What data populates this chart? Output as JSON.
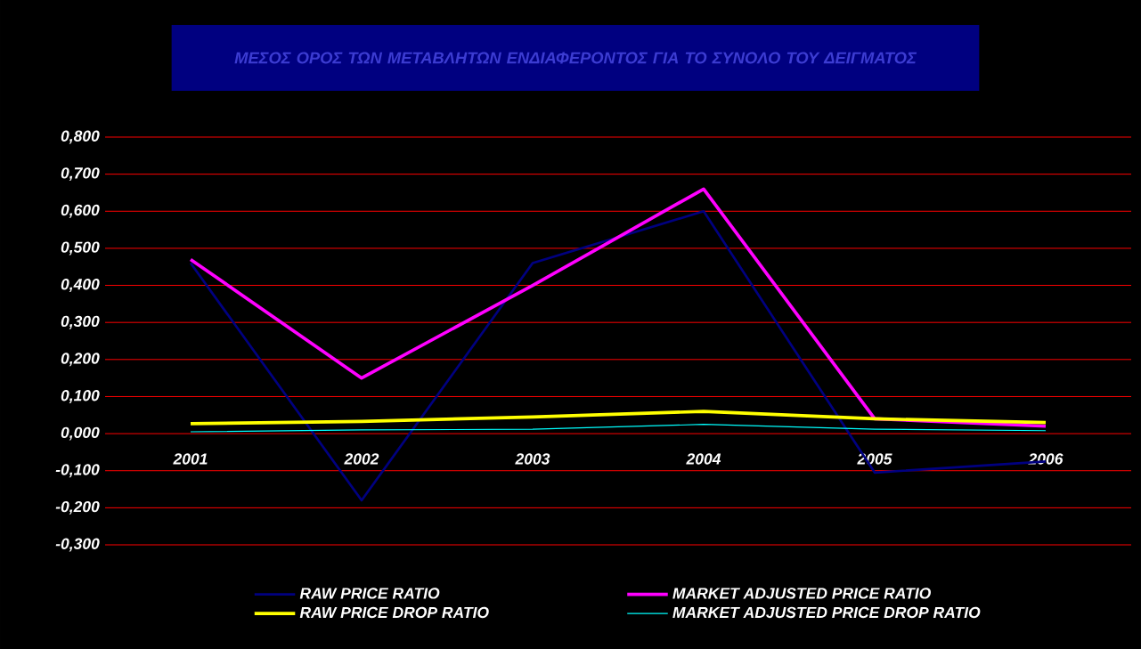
{
  "chart_data": {
    "type": "line",
    "title": "ΜΕΣΟΣ ΟΡΟΣ ΤΩΝ ΜΕΤΑΒΛΗΤΩΝ ΕΝΔΙΑΦΕΡΟΝΤΟΣ ΓΙΑ ΤΟ ΣΥΝΟΛΟ ΤΟΥ ΔΕΙΓΜΑΤΟΣ",
    "categories": [
      "2001",
      "2002",
      "2003",
      "2004",
      "2005",
      "2006"
    ],
    "series": [
      {
        "name": "RAW PRICE RATIO",
        "color": "#000080",
        "values": [
          0.46,
          -0.18,
          0.46,
          0.6,
          -0.105,
          -0.075
        ]
      },
      {
        "name": "MARKET ADJUSTED PRICE RATIO",
        "color": "#ff00ff",
        "values": [
          0.47,
          0.15,
          0.4,
          0.66,
          0.04,
          0.02
        ]
      },
      {
        "name": "RAW PRICE DROP RATIO",
        "color": "#ffff00",
        "values": [
          0.027,
          0.033,
          0.045,
          0.06,
          0.04,
          0.03
        ]
      },
      {
        "name": "MARKET ADJUSTED PRICE DROP RATIO",
        "color": "#00ffff",
        "values": [
          0.005,
          0.01,
          0.012,
          0.025,
          0.012,
          0.008
        ]
      }
    ],
    "ylim": [
      -0.3,
      0.8
    ],
    "yticks": [
      {
        "value": -0.3,
        "label": "-0,300"
      },
      {
        "value": -0.2,
        "label": "-0,200"
      },
      {
        "value": -0.1,
        "label": "-0,100"
      },
      {
        "value": 0,
        "label": "0,000"
      },
      {
        "value": 0.1,
        "label": "0,100"
      },
      {
        "value": 0.2,
        "label": "0,200"
      },
      {
        "value": 0.3,
        "label": "0,300"
      },
      {
        "value": 0.4,
        "label": "0,400"
      },
      {
        "value": 0.5,
        "label": "0,500"
      },
      {
        "value": 0.6,
        "label": "0,600"
      },
      {
        "value": 0.7,
        "label": "0,700"
      },
      {
        "value": 0.8,
        "label": "0,800"
      }
    ],
    "grid": "y",
    "legend": "bottom",
    "marker": "none",
    "line_style": "solid"
  }
}
